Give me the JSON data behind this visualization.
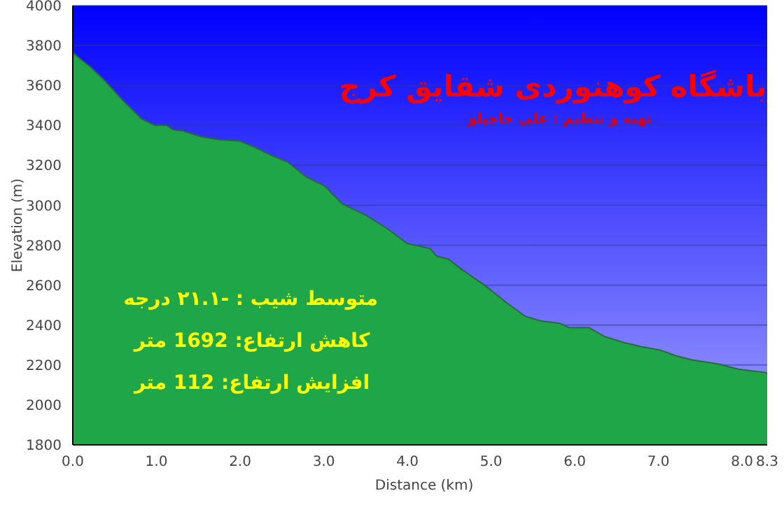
{
  "chart_data": {
    "type": "area",
    "title": "باشگاه کوهنوردی شقایق کرج",
    "subtitle": "تهیه و تنظیم : علی حاجیلو",
    "xlabel": "Distance  (km)",
    "ylabel": "Elevation (m)",
    "x": [
      0,
      0.11,
      0.22,
      0.38,
      0.6,
      0.82,
      0.98,
      1.12,
      1.2,
      1.31,
      1.53,
      1.75,
      2.0,
      2.19,
      2.35,
      2.57,
      2.79,
      3.01,
      3.22,
      3.5,
      3.77,
      4.0,
      4.27,
      4.35,
      4.49,
      4.65,
      4.92,
      5.19,
      5.41,
      5.6,
      5.82,
      5.93,
      6.17,
      6.36,
      6.58,
      6.8,
      7.02,
      7.21,
      7.4,
      7.73,
      7.95,
      8.27,
      8.3
    ],
    "series": [
      {
        "color": "#1fa648",
        "values": [
          3764,
          3726,
          3690,
          3625,
          3524,
          3434,
          3400,
          3400,
          3378,
          3373,
          3344,
          3328,
          3321,
          3288,
          3254,
          3216,
          3142,
          3097,
          3007,
          2951,
          2880,
          2808,
          2783,
          2745,
          2730,
          2678,
          2600,
          2510,
          2443,
          2420,
          2409,
          2387,
          2387,
          2342,
          2313,
          2291,
          2275,
          2246,
          2226,
          2204,
          2179,
          2163,
          2160
        ]
      }
    ],
    "xlim": [
      0,
      8.3
    ],
    "ylim": [
      1800,
      4000
    ],
    "xticks": [
      {
        "value": 0,
        "label": "0.0"
      },
      {
        "value": 1,
        "label": "1.0"
      },
      {
        "value": 2,
        "label": "2.0"
      },
      {
        "value": 3,
        "label": "3.0"
      },
      {
        "value": 4,
        "label": "4.0"
      },
      {
        "value": 5,
        "label": "5.0"
      },
      {
        "value": 6,
        "label": "6.0"
      },
      {
        "value": 7,
        "label": "7.0"
      },
      {
        "value": 8,
        "label": "8.0"
      },
      {
        "value": 8.3,
        "label": "8.3"
      }
    ],
    "yticks": [
      1800,
      2000,
      2200,
      2400,
      2600,
      2800,
      3000,
      3200,
      3400,
      3600,
      3800,
      4000
    ],
    "grid": "y",
    "legend": false,
    "annotations": [
      "متوسط شیب : -۲۱.۱  درجه",
      "کاهش ارتفاع: 1692 متر",
      "افزایش ارتفاع: 112 متر"
    ]
  }
}
